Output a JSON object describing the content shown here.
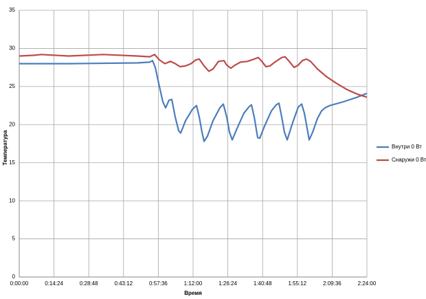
{
  "chart_data": {
    "type": "line",
    "x_label": "Время",
    "y_label": "Температура",
    "xlim": [
      0,
      8640
    ],
    "ylim": [
      0,
      35
    ],
    "xticks": [
      {
        "value": 0,
        "label": "0:00:00"
      },
      {
        "value": 864,
        "label": "0:14:24"
      },
      {
        "value": 1728,
        "label": "0:28:48"
      },
      {
        "value": 2592,
        "label": "0:43:12"
      },
      {
        "value": 3456,
        "label": "0:57:36"
      },
      {
        "value": 4320,
        "label": "1:12:00"
      },
      {
        "value": 5184,
        "label": "1:26:24"
      },
      {
        "value": 6048,
        "label": "1:40:48"
      },
      {
        "value": 6912,
        "label": "1:55:12"
      },
      {
        "value": 7776,
        "label": "2:09:36"
      },
      {
        "value": 8640,
        "label": "2:24:00"
      }
    ],
    "yticks": [
      0,
      5,
      10,
      15,
      20,
      25,
      30,
      35
    ],
    "grid": true,
    "legend": "right",
    "series": [
      {
        "name": "Внутри 0 Вт",
        "color": "#4a7ebb",
        "x": [
          0,
          1229,
          2937,
          3244,
          3313,
          3381,
          3483,
          3569,
          3637,
          3722,
          3791,
          3876,
          3961,
          4013,
          4132,
          4303,
          4405,
          4474,
          4542,
          4593,
          4679,
          4815,
          4986,
          5071,
          5157,
          5225,
          5293,
          5413,
          5584,
          5703,
          5772,
          5840,
          5925,
          5976,
          6096,
          6267,
          6386,
          6454,
          6523,
          6591,
          6659,
          6779,
          6932,
          7018,
          7086,
          7154,
          7206,
          7291,
          7410,
          7513,
          7598,
          7718,
          8059,
          8400,
          8640
        ],
        "values": [
          28.0,
          28.0,
          28.1,
          28.2,
          28.4,
          27.5,
          25,
          23,
          22.2,
          23.2,
          23.3,
          21,
          19.2,
          18.9,
          20.5,
          22,
          22.5,
          21,
          19,
          17.8,
          18.5,
          20.5,
          22.2,
          22.7,
          21,
          19,
          18,
          19.5,
          21.5,
          22.3,
          22.6,
          21,
          18.3,
          18.2,
          19.8,
          21.8,
          22.6,
          22.8,
          21,
          19,
          18,
          20,
          22.3,
          22.7,
          21.5,
          19.5,
          18,
          19,
          20.8,
          21.8,
          22.2,
          22.5,
          23,
          23.6,
          24.1
        ]
      },
      {
        "name": "Снаружи 0 Вт",
        "color": "#be4b48",
        "x": [
          0,
          376,
          546,
          1229,
          2083,
          2937,
          3244,
          3364,
          3483,
          3620,
          3757,
          3876,
          3996,
          4132,
          4269,
          4388,
          4474,
          4593,
          4713,
          4815,
          4952,
          5088,
          5157,
          5259,
          5362,
          5498,
          5669,
          5840,
          5942,
          6045,
          6130,
          6232,
          6352,
          6523,
          6608,
          6693,
          6830,
          6932,
          7035,
          7137,
          7240,
          7411,
          7632,
          7889,
          8145,
          8400,
          8640
        ],
        "values": [
          29.0,
          29.1,
          29.2,
          29.0,
          29.2,
          29.0,
          28.9,
          29.2,
          28.5,
          28.0,
          28.3,
          28.0,
          27.6,
          27.7,
          28.0,
          28.5,
          28.6,
          27.7,
          27.0,
          27.3,
          28.3,
          28.4,
          27.8,
          27.4,
          27.8,
          28.2,
          28.3,
          28.6,
          28.8,
          28.2,
          27.6,
          27.7,
          28.2,
          28.8,
          28.9,
          28.4,
          27.5,
          27.8,
          28.4,
          28.6,
          28.3,
          27.3,
          26.3,
          25.4,
          24.6,
          24.0,
          23.6
        ]
      }
    ]
  }
}
